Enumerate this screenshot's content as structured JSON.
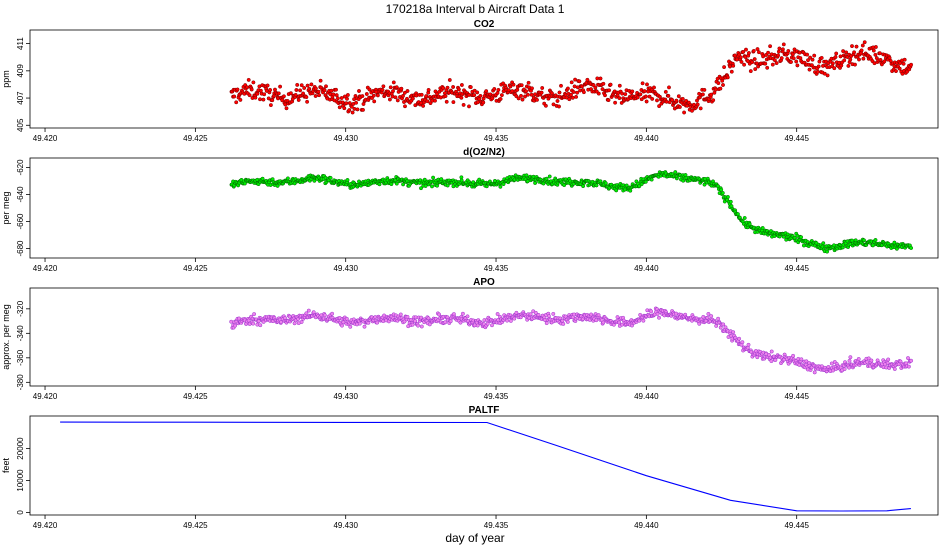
{
  "figure": {
    "title": "170218a   Interval b Aircraft Data 1",
    "xlabel": "day of year"
  },
  "chart_data": [
    {
      "type": "scatter",
      "title": "CO2",
      "ylabel": "ppm",
      "xlim": [
        49.4195,
        49.4497
      ],
      "ylim": [
        404.8,
        412.0
      ],
      "xticks": [
        49.42,
        49.425,
        49.43,
        49.435,
        49.44,
        49.445
      ],
      "xtick_labels": [
        "49.420",
        "49.425",
        "49.430",
        "49.435",
        "49.440",
        "49.445"
      ],
      "yticks": [
        405,
        407,
        409,
        411
      ],
      "ytick_labels": [
        "405",
        "407",
        "409",
        "411"
      ],
      "grid": false,
      "marker_color": "#ff0000",
      "edge_color": "#7a0000",
      "series": [
        {
          "x_range": [
            49.4262,
            49.4488
          ],
          "points": [
            [
              49.4262,
              407.1
            ],
            [
              49.4275,
              407.4
            ],
            [
              49.429,
              407.2
            ],
            [
              49.4305,
              407.0
            ],
            [
              49.432,
              407.3
            ],
            [
              49.4335,
              407.1
            ],
            [
              49.435,
              407.5
            ],
            [
              49.4365,
              407.2
            ],
            [
              49.438,
              407.6
            ],
            [
              49.4395,
              407.3
            ],
            [
              49.4405,
              406.8
            ],
            [
              49.4415,
              406.9
            ],
            [
              49.4422,
              407.2
            ],
            [
              49.4427,
              408.5
            ],
            [
              49.443,
              410.0
            ],
            [
              49.444,
              410.1
            ],
            [
              49.445,
              409.8
            ],
            [
              49.446,
              409.6
            ],
            [
              49.447,
              410.0
            ],
            [
              49.448,
              410.2
            ],
            [
              49.4488,
              409.2
            ]
          ],
          "noise": 0.9
        }
      ]
    },
    {
      "type": "scatter",
      "title": "d(O2/N2)",
      "ylabel": "per meg",
      "xlim": [
        49.4195,
        49.4497
      ],
      "ylim": [
        -687,
        -613
      ],
      "xticks": [
        49.42,
        49.425,
        49.43,
        49.435,
        49.44,
        49.445
      ],
      "xtick_labels": [
        "49.420",
        "49.425",
        "49.430",
        "49.435",
        "49.440",
        "49.445"
      ],
      "yticks": [
        -680,
        -660,
        -640,
        -620
      ],
      "ytick_labels": [
        "-680",
        "-660",
        "-640",
        "-620"
      ],
      "grid": false,
      "marker_color": "#00ee00",
      "edge_color": "#006400",
      "series": [
        {
          "x_range": [
            49.4262,
            49.4488
          ],
          "points": [
            [
              49.4262,
              -633
            ],
            [
              49.4275,
              -630
            ],
            [
              49.429,
              -629
            ],
            [
              49.4305,
              -632
            ],
            [
              49.432,
              -630
            ],
            [
              49.4335,
              -632
            ],
            [
              49.435,
              -631
            ],
            [
              49.4365,
              -628
            ],
            [
              49.438,
              -632
            ],
            [
              49.4395,
              -634
            ],
            [
              49.4405,
              -626
            ],
            [
              49.4415,
              -627
            ],
            [
              49.4422,
              -632
            ],
            [
              49.4428,
              -648
            ],
            [
              49.4432,
              -660
            ],
            [
              49.444,
              -668
            ],
            [
              49.445,
              -674
            ],
            [
              49.446,
              -678
            ],
            [
              49.447,
              -677
            ],
            [
              49.448,
              -676
            ],
            [
              49.4488,
              -678
            ]
          ],
          "noise": 3.5
        }
      ]
    },
    {
      "type": "scatter",
      "title": "APO",
      "ylabel": "approx. per meg",
      "xlim": [
        49.4195,
        49.4497
      ],
      "ylim": [
        -383,
        -303
      ],
      "xticks": [
        49.42,
        49.425,
        49.43,
        49.435,
        49.44,
        49.445
      ],
      "xtick_labels": [
        "49.420",
        "49.425",
        "49.430",
        "49.435",
        "49.440",
        "49.445"
      ],
      "yticks": [
        -380,
        -360,
        -340,
        -320
      ],
      "ytick_labels": [
        "-380",
        "-360",
        "-340",
        "-320"
      ],
      "grid": false,
      "marker_color": "#ee82ee",
      "edge_color": "#9932cc",
      "series": [
        {
          "x_range": [
            49.4262,
            49.4488
          ],
          "points": [
            [
              49.4262,
              -333
            ],
            [
              49.4275,
              -328
            ],
            [
              49.429,
              -327
            ],
            [
              49.4305,
              -330
            ],
            [
              49.432,
              -328
            ],
            [
              49.4335,
              -330
            ],
            [
              49.435,
              -329
            ],
            [
              49.4365,
              -326
            ],
            [
              49.438,
              -328
            ],
            [
              49.4395,
              -330
            ],
            [
              49.4405,
              -324
            ],
            [
              49.4415,
              -326
            ],
            [
              49.4422,
              -330
            ],
            [
              49.4428,
              -342
            ],
            [
              49.4432,
              -350
            ],
            [
              49.444,
              -358
            ],
            [
              49.445,
              -365
            ],
            [
              49.446,
              -368
            ],
            [
              49.447,
              -366
            ],
            [
              49.448,
              -364
            ],
            [
              49.4488,
              -364
            ]
          ],
          "noise": 5
        }
      ]
    },
    {
      "type": "line",
      "title": "PALTF",
      "ylabel": "feet",
      "xlim": [
        49.4195,
        49.4497
      ],
      "ylim": [
        -800,
        30200
      ],
      "xticks": [
        49.42,
        49.425,
        49.43,
        49.435,
        49.44,
        49.445
      ],
      "xtick_labels": [
        "49.420",
        "49.425",
        "49.430",
        "49.435",
        "49.440",
        "49.445"
      ],
      "yticks": [
        0,
        10000,
        20000
      ],
      "ytick_labels": [
        "0",
        "10000",
        "20000"
      ],
      "grid": false,
      "line_color": "#0000ff",
      "series": [
        {
          "x": [
            49.4205,
            49.425,
            49.43,
            49.4347,
            49.437,
            49.44,
            49.4428,
            49.445,
            49.4465,
            49.448,
            49.4488
          ],
          "y": [
            28300,
            28250,
            28200,
            28150,
            21000,
            11500,
            3800,
            500,
            450,
            500,
            1200
          ]
        }
      ]
    }
  ]
}
